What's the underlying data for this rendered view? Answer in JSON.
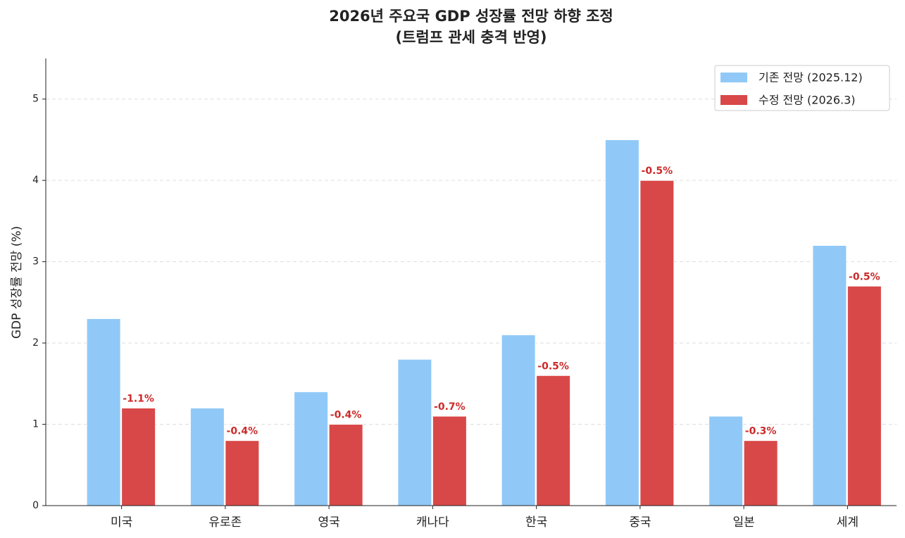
{
  "chart_data": {
    "type": "bar",
    "title": "2026년 주요국 GDP 성장률 전망 하향 조정",
    "subtitle": "(트럼프 관세 충격 반영)",
    "y_label": "GDP 성장률 전망 (%)",
    "categories": [
      "미국",
      "유로존",
      "영국",
      "캐나다",
      "한국",
      "중국",
      "일본",
      "세계"
    ],
    "series": [
      {
        "name": "기존 전망 (2025.12)",
        "color": "#90c9f7",
        "values": [
          2.3,
          1.2,
          1.4,
          1.8,
          2.1,
          4.5,
          1.1,
          3.2
        ]
      },
      {
        "name": "수정 전망 (2026.3)",
        "color": "#d94848",
        "values": [
          1.2,
          0.8,
          1.0,
          1.1,
          1.6,
          4.0,
          0.8,
          2.7
        ]
      }
    ],
    "annotations": [
      "-1.1%",
      "-0.4%",
      "-0.4%",
      "-0.7%",
      "-0.5%",
      "-0.5%",
      "-0.3%",
      "-0.5%"
    ],
    "annotation_color": "#cc2a2a",
    "ylim": [
      0,
      5.5
    ],
    "yticks": [
      0,
      1,
      2,
      3,
      4,
      5
    ],
    "grid": true,
    "legend": "upper right"
  }
}
